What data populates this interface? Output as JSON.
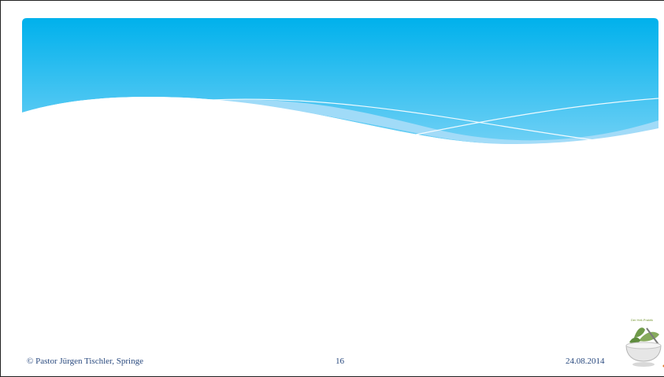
{
  "slide": {
    "footer": {
      "copyright": "© Pastor Jürgen Tischler, Springe",
      "page_number": "16",
      "date": "24.08.2014"
    },
    "logo": {
      "text": "Der Heil-Praktik",
      "icon": "mortar-pestle-herbs-icon"
    },
    "colors": {
      "wave_top": "#00b1ec",
      "wave_bottom": "#5cc8f2",
      "wave_light": "#a9ddf8",
      "footer_text": "#2a4a7f"
    }
  }
}
